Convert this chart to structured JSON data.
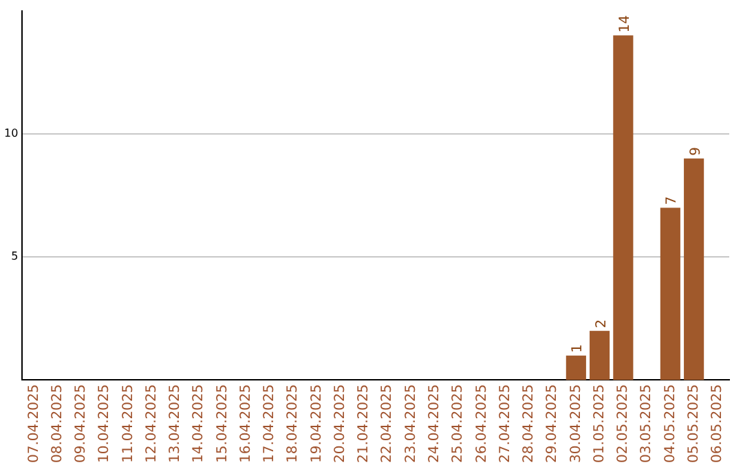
{
  "chart_data": {
    "type": "bar",
    "categories": [
      "07.04.2025",
      "08.04.2025",
      "09.04.2025",
      "10.04.2025",
      "11.04.2025",
      "12.04.2025",
      "13.04.2025",
      "14.04.2025",
      "15.04.2025",
      "16.04.2025",
      "17.04.2025",
      "18.04.2025",
      "19.04.2025",
      "20.04.2025",
      "21.04.2025",
      "22.04.2025",
      "23.04.2025",
      "24.04.2025",
      "25.04.2025",
      "26.04.2025",
      "27.04.2025",
      "28.04.2025",
      "29.04.2025",
      "30.04.2025",
      "01.05.2025",
      "02.05.2025",
      "03.05.2025",
      "04.05.2025",
      "05.05.2025",
      "06.05.2025"
    ],
    "values": [
      null,
      null,
      null,
      null,
      null,
      null,
      null,
      null,
      null,
      null,
      null,
      null,
      null,
      null,
      null,
      null,
      null,
      null,
      null,
      null,
      null,
      null,
      null,
      1,
      2,
      14,
      null,
      7,
      9,
      null
    ],
    "color": "#a0592b",
    "ylim": [
      0,
      15
    ],
    "yticks": [
      5,
      10
    ],
    "grid": "y",
    "data_labels": true,
    "legend": false
  }
}
